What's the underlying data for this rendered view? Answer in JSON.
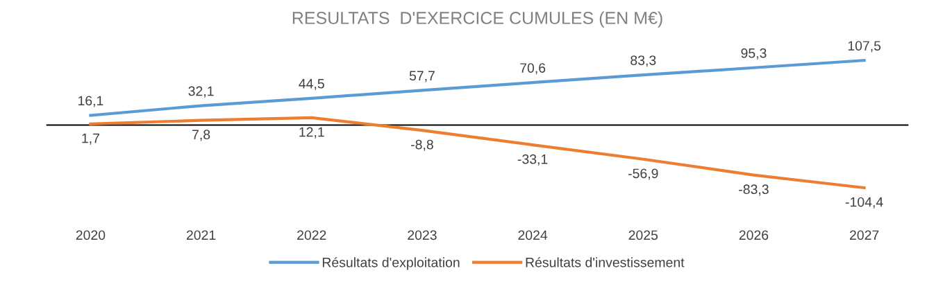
{
  "chart_data": {
    "type": "line",
    "title": "RESULTATS  D'EXERCICE CUMULES (EN M€)",
    "categories": [
      "2020",
      "2021",
      "2022",
      "2023",
      "2024",
      "2025",
      "2026",
      "2027"
    ],
    "series": [
      {
        "name": "Résultats d'exploitation",
        "color": "#5b9bd5",
        "values": [
          16.1,
          32.1,
          44.5,
          57.7,
          70.6,
          83.3,
          95.3,
          107.5
        ],
        "value_labels": [
          "16,1",
          "32,1",
          "44,5",
          "57,7",
          "70,6",
          "83,3",
          "95,3",
          "107,5"
        ]
      },
      {
        "name": "Résultats d'investissement",
        "color": "#ed7d31",
        "values": [
          1.7,
          7.8,
          12.1,
          -8.8,
          -33.1,
          -56.9,
          -83.3,
          -104.4
        ],
        "value_labels": [
          "1,7",
          "7,8",
          "12,1",
          "-8,8",
          "-33,1",
          "-56,9",
          "-83,3",
          "-104,4"
        ]
      }
    ],
    "tick_labels": "x",
    "grid": false,
    "legend": "bottom",
    "marker": "none",
    "line_style": "solid",
    "ref_lines": [
      {
        "axis": "y",
        "value": 0,
        "color": "#000000"
      }
    ]
  }
}
